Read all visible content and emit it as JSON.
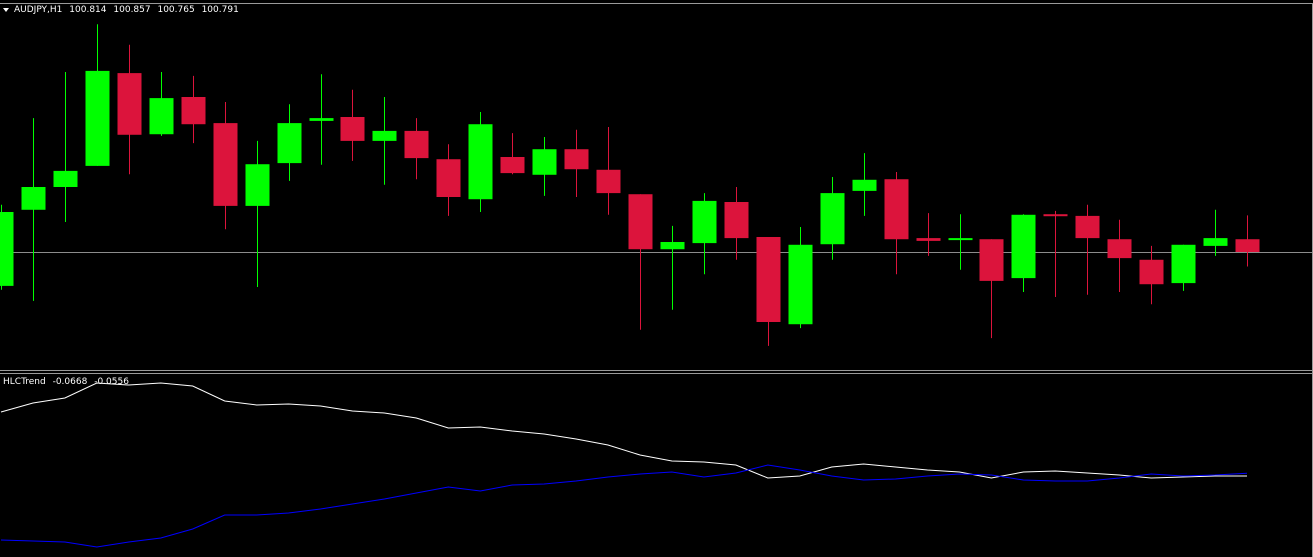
{
  "chart_data": [
    {
      "type": "candlestick",
      "title": "AUDJPY,H1",
      "up_color": "#00ff00",
      "down_color": "#dc143c",
      "last_price_line": true,
      "ylim": [
        100.5786,
        101.2374
      ],
      "open": [
        100.73,
        100.867,
        100.908,
        100.946,
        101.113,
        101.003,
        101.07,
        101.023,
        100.874,
        100.951,
        101.027,
        101.034,
        100.991,
        101.009,
        100.958,
        100.886,
        100.962,
        100.93,
        100.976,
        100.939,
        100.895,
        100.796,
        100.807,
        100.881,
        100.818,
        100.661,
        100.805,
        100.901,
        100.922,
        100.816,
        100.813,
        100.814,
        100.744,
        100.859,
        100.856,
        100.814,
        100.777,
        100.735,
        100.802,
        100.814
      ],
      "high": [
        100.876,
        101.032,
        101.115,
        101.201,
        101.164,
        101.115,
        101.108,
        101.061,
        100.991,
        101.057,
        101.111,
        101.083,
        101.07,
        101.032,
        100.985,
        101.043,
        101.005,
        100.998,
        101.011,
        101.016,
        100.895,
        100.838,
        100.897,
        100.908,
        100.818,
        100.836,
        100.926,
        100.969,
        100.935,
        100.861,
        100.859,
        100.814,
        100.859,
        100.865,
        100.876,
        100.849,
        100.802,
        100.804,
        100.867,
        100.857
      ],
      "low": [
        100.723,
        100.703,
        100.845,
        100.946,
        100.931,
        101.0,
        100.987,
        100.832,
        100.728,
        100.919,
        100.948,
        100.955,
        100.912,
        100.922,
        100.856,
        100.863,
        100.931,
        100.892,
        100.89,
        100.858,
        100.651,
        100.687,
        100.751,
        100.777,
        100.622,
        100.654,
        100.777,
        100.856,
        100.751,
        100.784,
        100.759,
        100.636,
        100.719,
        100.71,
        100.714,
        100.719,
        100.697,
        100.721,
        100.784,
        100.765
      ],
      "close": [
        100.863,
        100.908,
        100.937,
        101.117,
        101.002,
        101.068,
        101.021,
        100.874,
        100.949,
        101.023,
        101.032,
        100.991,
        101.009,
        100.96,
        100.89,
        101.021,
        100.933,
        100.976,
        100.94,
        100.897,
        100.796,
        100.809,
        100.883,
        100.816,
        100.665,
        100.804,
        100.897,
        100.921,
        100.814,
        100.811,
        100.816,
        100.739,
        100.858,
        100.856,
        100.816,
        100.78,
        100.733,
        100.804,
        100.816,
        100.791
      ]
    },
    {
      "type": "line",
      "title": "HLCTrend",
      "ylim": [
        -0.3868,
        0.3332
      ],
      "series": [
        {
          "color": "#ffffff",
          "values": [
            0.1892,
            0.2252,
            0.2452,
            0.3052,
            0.2972,
            0.3052,
            0.2932,
            0.2332,
            0.2172,
            0.2212,
            0.2132,
            0.1932,
            0.1852,
            0.1652,
            0.1252,
            0.1292,
            0.1132,
            0.1012,
            0.0812,
            0.0572,
            0.0172,
            -0.0068,
            -0.0108,
            -0.0228,
            -0.0748,
            -0.0668,
            -0.0308,
            -0.0188,
            -0.0308,
            -0.0428,
            -0.0508,
            -0.0748,
            -0.0508,
            -0.0468,
            -0.0548,
            -0.0628,
            -0.0748,
            -0.0708,
            -0.0668,
            -0.0668
          ]
        },
        {
          "color": "#0000ff",
          "values": [
            -0.3228,
            -0.3268,
            -0.3308,
            -0.3508,
            -0.3308,
            -0.3148,
            -0.2788,
            -0.2228,
            -0.2228,
            -0.2148,
            -0.1988,
            -0.1788,
            -0.1588,
            -0.1348,
            -0.1108,
            -0.1268,
            -0.1028,
            -0.0988,
            -0.0868,
            -0.0708,
            -0.0588,
            -0.0508,
            -0.0708,
            -0.0548,
            -0.0228,
            -0.0428,
            -0.0668,
            -0.0828,
            -0.0788,
            -0.0668,
            -0.0588,
            -0.0628,
            -0.0828,
            -0.0868,
            -0.0868,
            -0.0748,
            -0.0588,
            -0.0668,
            -0.0628,
            -0.0556
          ]
        }
      ]
    }
  ]
}
